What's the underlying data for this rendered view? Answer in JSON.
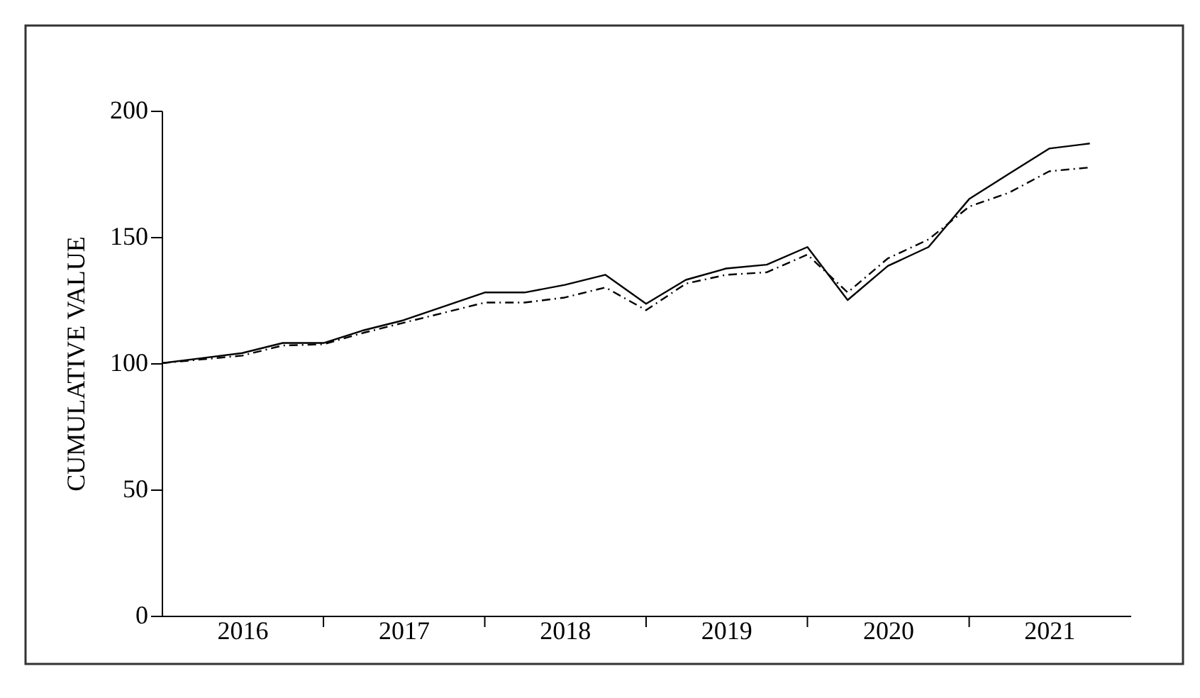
{
  "chart_data": {
    "type": "line",
    "ylabel": "CUMULATIVE VALUE",
    "x": [
      "2016-01",
      "2016-04",
      "2016-07",
      "2016-10",
      "2017-01",
      "2017-04",
      "2017-07",
      "2017-10",
      "2018-01",
      "2018-04",
      "2018-07",
      "2018-10",
      "2019-01",
      "2019-04",
      "2019-07",
      "2019-10",
      "2020-01",
      "2020-04",
      "2020-07",
      "2020-10",
      "2021-01",
      "2021-04",
      "2021-07",
      "2021-10"
    ],
    "series": [
      {
        "color": "#000000",
        "line_style": "solid",
        "values": [
          100,
          102,
          104,
          108,
          108,
          113,
          117,
          122.5,
          128,
          128,
          131,
          135,
          123.5,
          133,
          137.5,
          139,
          146,
          125,
          138.5,
          146,
          165,
          175,
          185,
          187
        ]
      },
      {
        "color": "#000000",
        "line_style": "dashdot",
        "values": [
          100,
          101.5,
          103,
          107,
          107.5,
          112,
          116,
          120,
          124,
          124,
          126,
          130,
          121,
          131.5,
          135,
          136,
          143,
          128,
          141.5,
          149,
          162,
          167.5,
          176,
          177.5
        ]
      }
    ],
    "xlim": [
      "2016-01",
      "2022-01"
    ],
    "xticks": [
      {
        "value": "2016-07",
        "label": "2016"
      },
      {
        "value": "2017-01",
        "label": null
      },
      {
        "value": "2017-07",
        "label": "2017"
      },
      {
        "value": "2018-01",
        "label": null
      },
      {
        "value": "2018-07",
        "label": "2018"
      },
      {
        "value": "2019-01",
        "label": null
      },
      {
        "value": "2019-07",
        "label": "2019"
      },
      {
        "value": "2020-01",
        "label": null
      },
      {
        "value": "2020-07",
        "label": "2020"
      },
      {
        "value": "2021-01",
        "label": null
      },
      {
        "value": "2021-07",
        "label": "2021"
      }
    ],
    "ylim": [
      0,
      200
    ],
    "yticks": [
      0,
      50,
      100,
      150,
      200
    ],
    "grid": false,
    "legend": false,
    "marker": "none"
  }
}
